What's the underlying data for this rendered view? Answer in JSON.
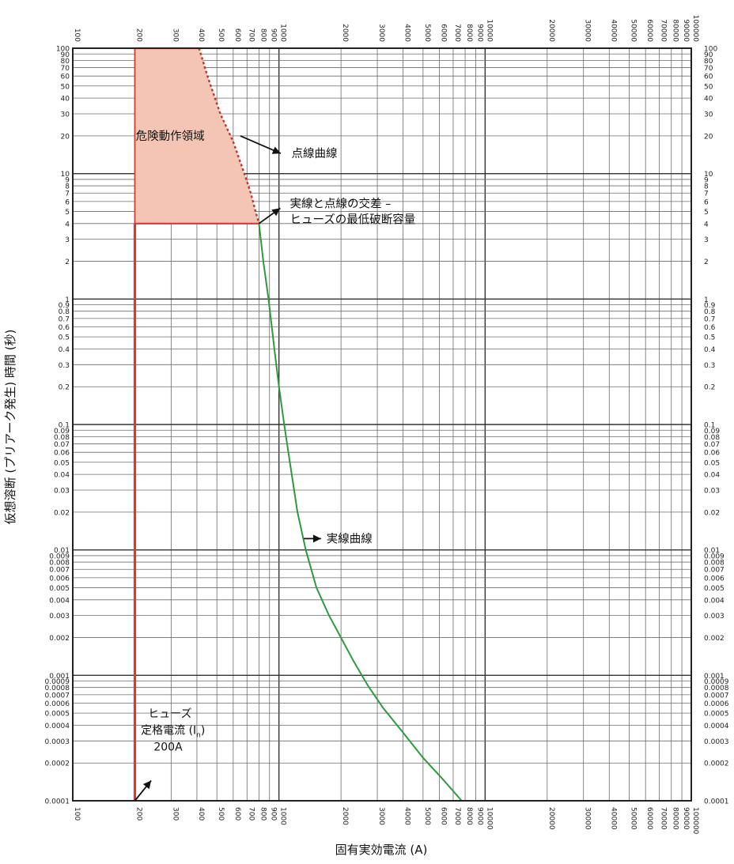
{
  "chart_data": {
    "type": "line",
    "x_scale": "log",
    "y_scale": "log",
    "xlim": [
      100,
      100000
    ],
    "ylim": [
      0.0001,
      100
    ],
    "grid": true,
    "xlabel": "固有実効電流 (A)",
    "ylabel": "仮想溶断 (プリアーク発生) 時間 (秒)",
    "x_tick_labels": [
      "100",
      "200",
      "300",
      "400",
      "500",
      "600",
      "700",
      "800",
      "900",
      "1000",
      "2000",
      "3000",
      "4000",
      "5000",
      "6000",
      "7000",
      "8000",
      "9000",
      "10000",
      "20000",
      "30000",
      "40000",
      "50000",
      "60000",
      "70000",
      "80000",
      "90000",
      "100000"
    ],
    "y_tick_labels": [
      "0.0001",
      "0.0002",
      "0.0003",
      "0.0004",
      "0.0005",
      "0.0006",
      "0.0007",
      "0.0008",
      "0.0009",
      "0.001",
      "0.002",
      "0.003",
      "0.004",
      "0.005",
      "0.006",
      "0.007",
      "0.008",
      "0.009",
      "0.01",
      "0.02",
      "0.03",
      "0.04",
      "0.05",
      "0.06",
      "0.07",
      "0.08",
      "0.09",
      "0.1",
      "0.2",
      "0.3",
      "0.4",
      "0.5",
      "0.6",
      "0.7",
      "0.8",
      "0.9",
      "1",
      "2",
      "3",
      "4",
      "5",
      "6",
      "7",
      "8",
      "9",
      "10",
      "20",
      "30",
      "40",
      "50",
      "60",
      "70",
      "80",
      "90",
      "100"
    ],
    "series": [
      {
        "name": "実線曲線",
        "style": "solid",
        "color": "#2e9a3e",
        "points": [
          [
            800,
            4
          ],
          [
            840,
            2
          ],
          [
            890,
            1
          ],
          [
            950,
            0.4
          ],
          [
            1000,
            0.2
          ],
          [
            1060,
            0.1
          ],
          [
            1130,
            0.05
          ],
          [
            1230,
            0.02
          ],
          [
            1350,
            0.01
          ],
          [
            1520,
            0.005
          ],
          [
            1750,
            0.003
          ],
          [
            2000,
            0.002
          ],
          [
            2300,
            0.0013
          ],
          [
            2700,
            0.00083
          ],
          [
            3200,
            0.00055
          ],
          [
            4000,
            0.00035
          ],
          [
            5000,
            0.00022
          ],
          [
            6200,
            0.00015
          ],
          [
            7700,
            0.0001
          ]
        ]
      },
      {
        "name": "点線曲線",
        "style": "dashed",
        "color": "#c0322c",
        "points": [
          [
            410,
            100
          ],
          [
            450,
            60
          ],
          [
            520,
            30
          ],
          [
            600,
            18
          ],
          [
            680,
            10
          ],
          [
            730,
            7
          ],
          [
            770,
            5
          ],
          [
            800,
            4
          ]
        ]
      },
      {
        "name": "定格電流",
        "style": "solid",
        "color": "#d63a34",
        "points": [
          [
            200,
            0.0001
          ],
          [
            200,
            4
          ]
        ]
      }
    ],
    "region": {
      "label": "危険動作領域",
      "fill": "#f4c5b5",
      "border": "#d63a34",
      "points": [
        [
          200,
          100
        ],
        [
          410,
          100
        ],
        [
          450,
          60
        ],
        [
          520,
          30
        ],
        [
          600,
          18
        ],
        [
          680,
          10
        ],
        [
          730,
          7
        ],
        [
          770,
          5
        ],
        [
          800,
          4
        ],
        [
          200,
          4
        ]
      ]
    },
    "annotations": [
      {
        "id": "danger",
        "text": "危険動作領域"
      },
      {
        "id": "dotted",
        "text": "点線曲線"
      },
      {
        "id": "cross_1",
        "text": "実線と点線の交差 –"
      },
      {
        "id": "cross_2",
        "text": "ヒューズの最低破断容量"
      },
      {
        "id": "solid",
        "text": "実線曲線"
      },
      {
        "id": "rated_1",
        "text": "ヒューズ"
      },
      {
        "id": "rated_2",
        "text": "定格電流 (I"
      },
      {
        "id": "rated_sub",
        "text": "n"
      },
      {
        "id": "rated_close",
        "text": ")"
      },
      {
        "id": "rated_3",
        "text": "200A"
      }
    ],
    "colors": {
      "grid": "#6b6b6b",
      "frame": "#222222",
      "region_fill": "#f4c5b5",
      "red": "#d63a34",
      "green": "#2e9a3e"
    }
  }
}
